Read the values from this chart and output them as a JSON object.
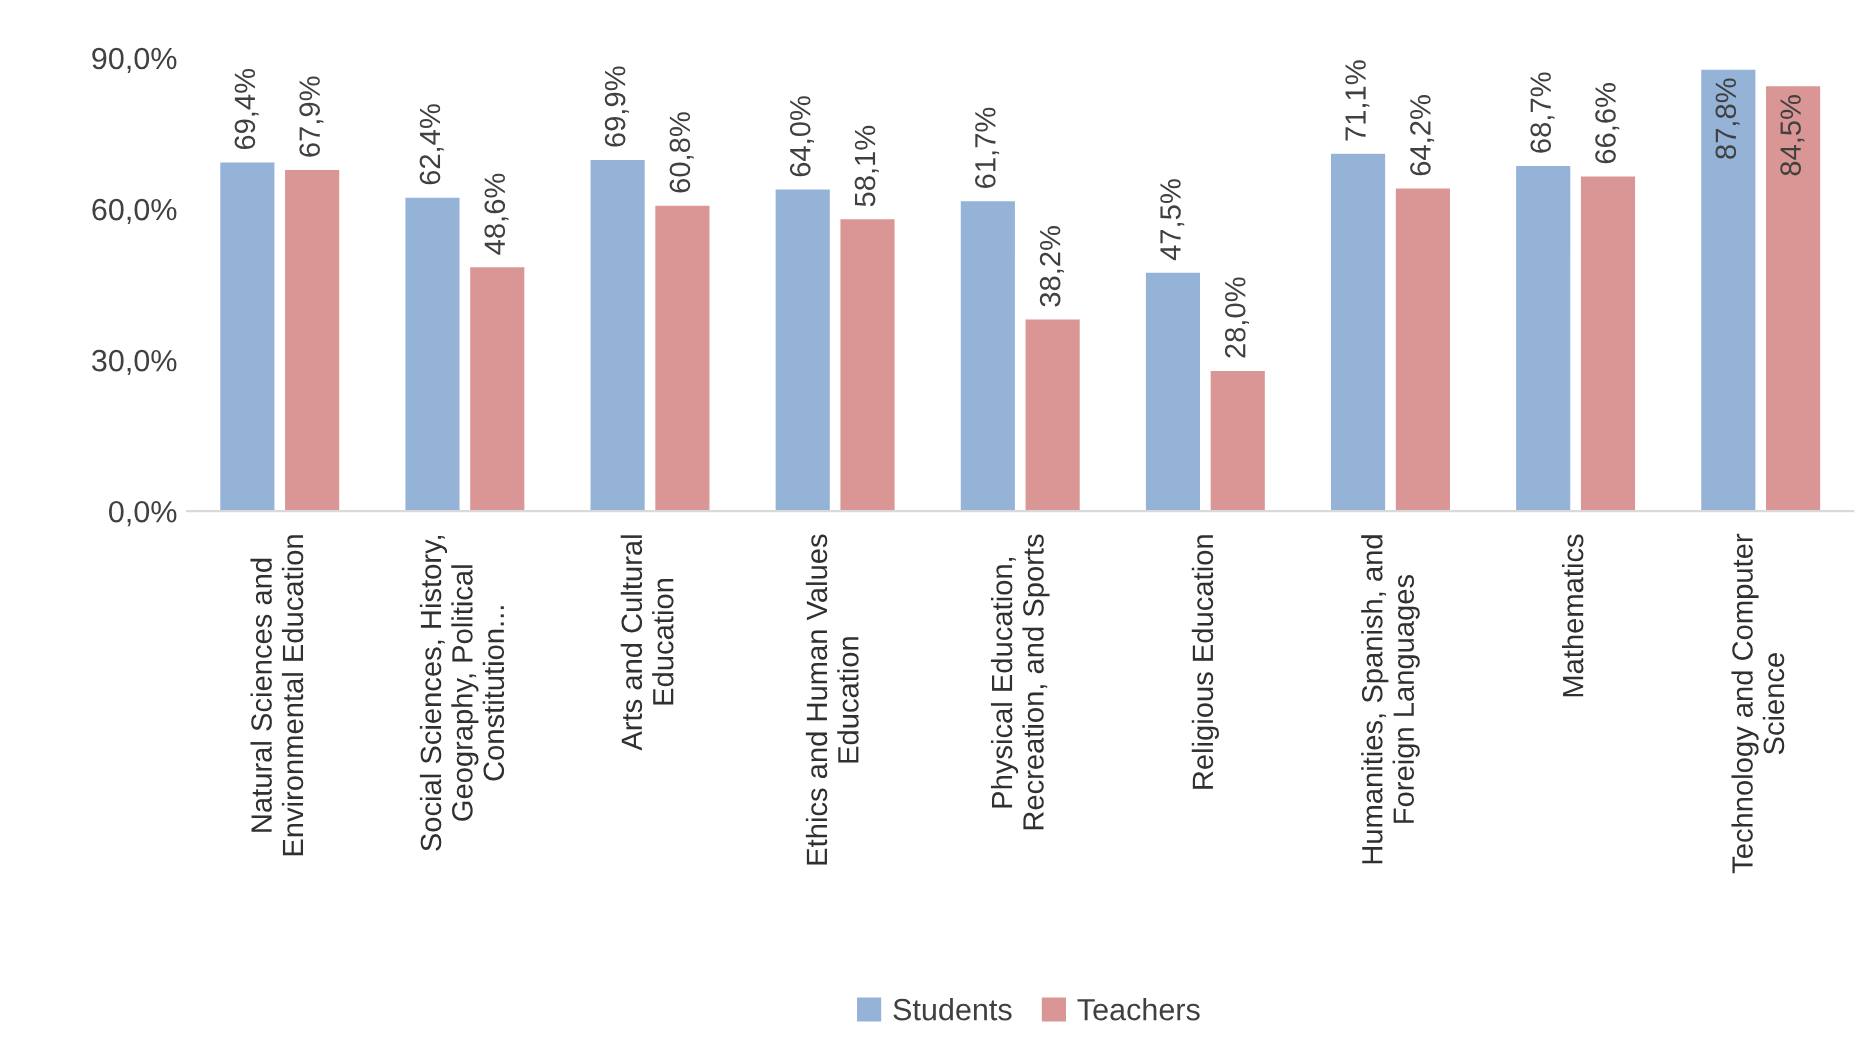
{
  "chart_data": {
    "type": "bar",
    "categories": [
      "Natural Sciences and\nEnvironmental Education",
      "Social Sciences, History,\nGeography, Political\nConstitution...",
      "Arts and Cultural\nEducation",
      "Ethics and Human Values\nEducation",
      "Physical Education,\nRecreation, and Sports",
      "Religious Education",
      "Humanities, Spanish, and\nForeign Languages",
      "Mathematics",
      "Technology and Computer\nScience"
    ],
    "series": [
      {
        "name": "Students",
        "color": "#95b3d7",
        "values": [
          69.4,
          62.4,
          69.9,
          64.0,
          61.7,
          47.5,
          71.1,
          68.7,
          87.8
        ],
        "value_labels": [
          "69,4%",
          "62,4%",
          "69,9%",
          "64,0%",
          "61,7%",
          "47,5%",
          "71,1%",
          "68,7%",
          "87,8%"
        ]
      },
      {
        "name": "Teachers",
        "color": "#d99694",
        "values": [
          67.9,
          48.6,
          60.8,
          58.1,
          38.2,
          28.0,
          64.2,
          66.6,
          84.5
        ],
        "value_labels": [
          "67,9%",
          "48,6%",
          "60,8%",
          "58,1%",
          "38,2%",
          "28,0%",
          "64,2%",
          "66,6%",
          "84,5%"
        ]
      }
    ],
    "ylim": [
      0,
      90
    ],
    "yticks": [
      {
        "value": 0,
        "label": "0,0%"
      },
      {
        "value": 30,
        "label": "30,0%"
      },
      {
        "value": 60,
        "label": "60,0%"
      },
      {
        "value": 90,
        "label": "90,0%"
      }
    ],
    "grid": false,
    "legend": "bottom"
  }
}
